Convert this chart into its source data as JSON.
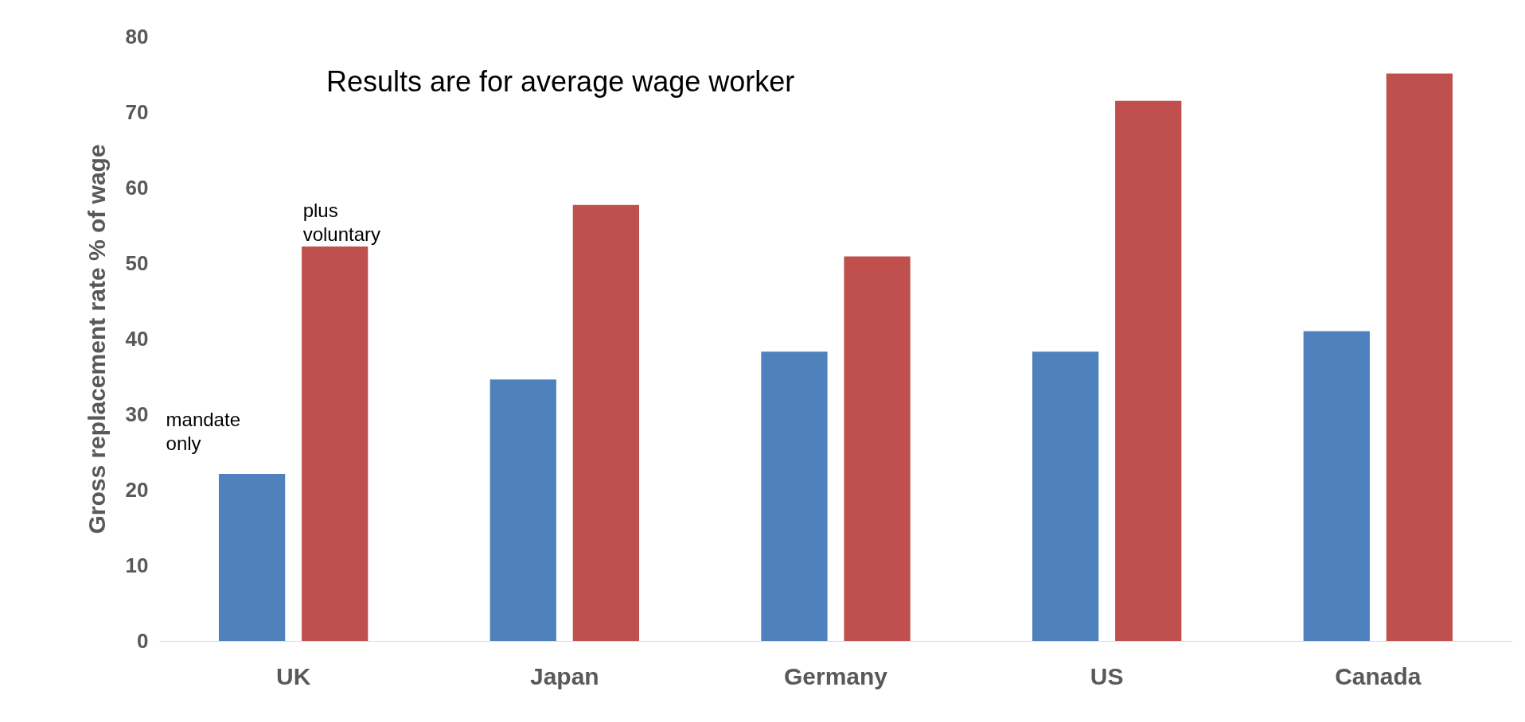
{
  "chart_data": {
    "type": "bar",
    "ylabel": "Gross replacement rate % of wage",
    "categories": [
      "UK",
      "Japan",
      "Germany",
      "US",
      "Canada"
    ],
    "series": [
      {
        "name": "mandate only",
        "color": "#4f81bd",
        "values": [
          22.1,
          34.6,
          38.3,
          38.3,
          41.0
        ]
      },
      {
        "name": "plus voluntary",
        "color": "#c0504d",
        "values": [
          52.2,
          57.7,
          50.9,
          71.5,
          75.1
        ]
      }
    ],
    "ylim": [
      0,
      80
    ],
    "yticks": [
      0,
      10,
      20,
      30,
      40,
      50,
      60,
      70,
      80
    ],
    "grid": false,
    "legend": false,
    "annotations": [
      "Results are for average wage worker"
    ]
  }
}
